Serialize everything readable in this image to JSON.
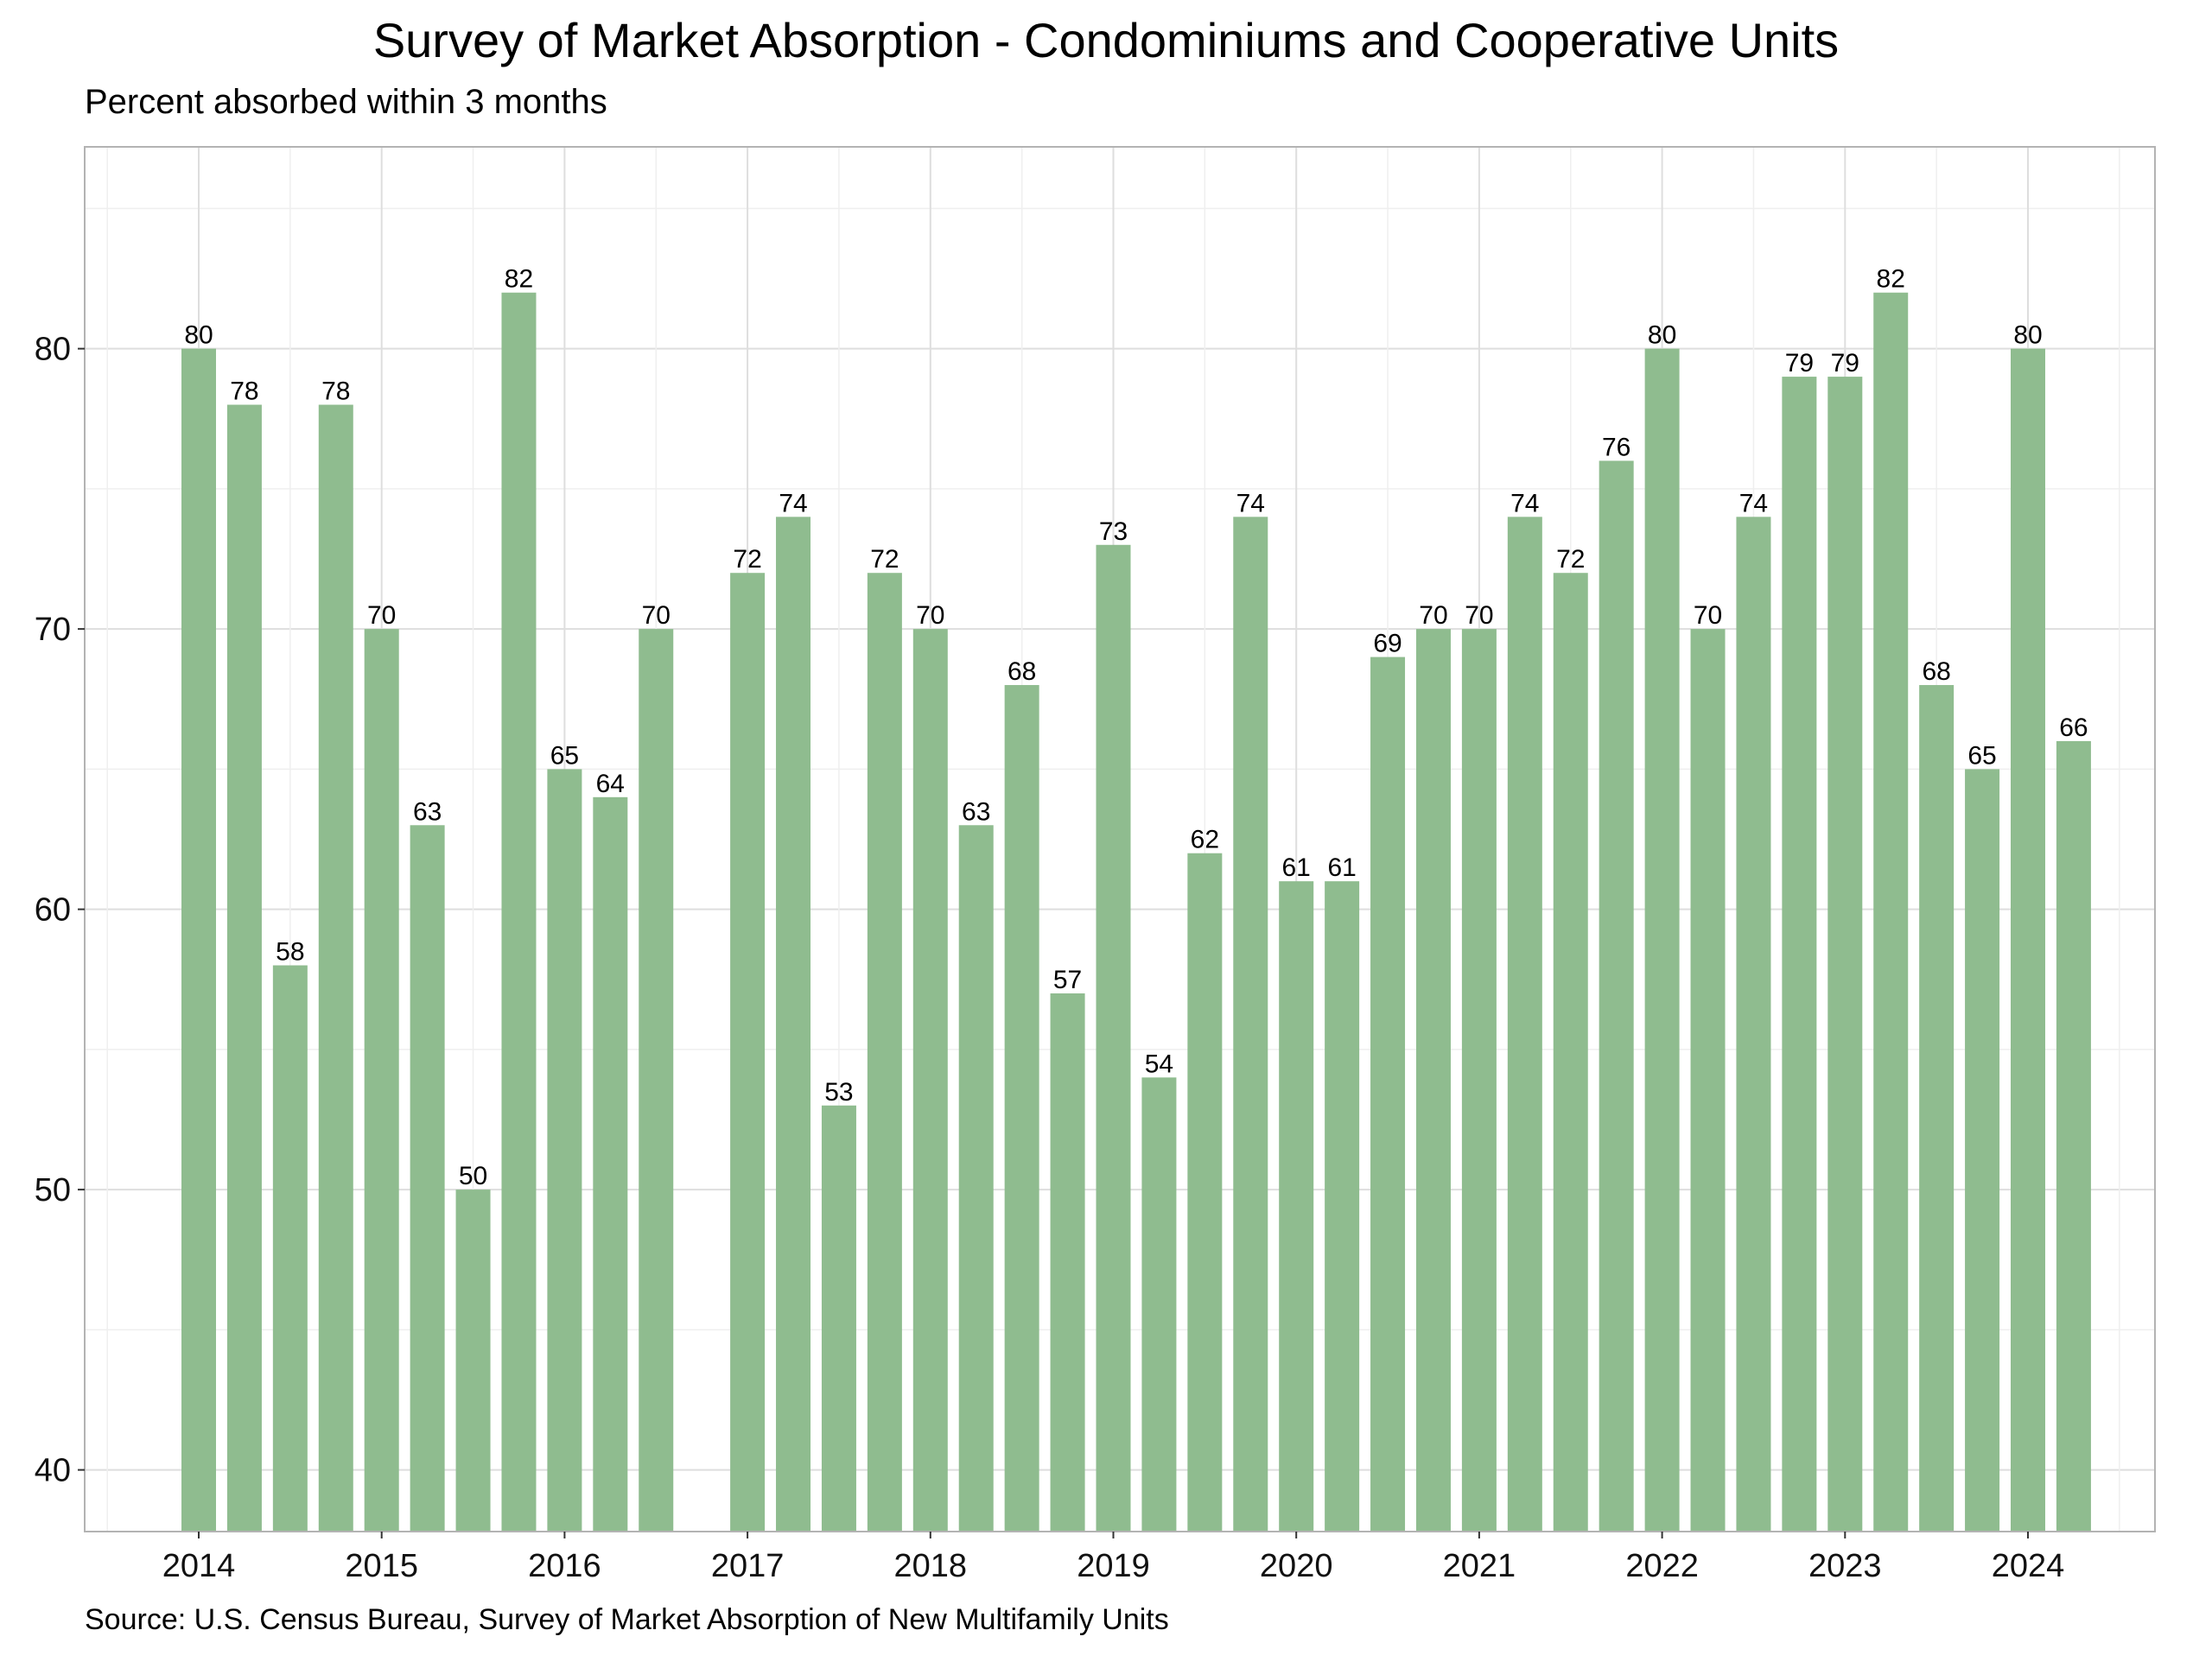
{
  "chart_data": {
    "type": "bar",
    "title": "Survey of Market Absorption - Condominiums and Cooperative Units",
    "subtitle": "Percent absorbed within 3 months",
    "source": "Source: U.S. Census Bureau, Survey of Market Absorption of New Multifamily Units",
    "xlabel": "",
    "ylabel": "",
    "bar_color": "#8fbc8f",
    "grid": true,
    "legend": "none",
    "x_ticks": [
      "2014",
      "2015",
      "2016",
      "2017",
      "2018",
      "2019",
      "2020",
      "2021",
      "2022",
      "2023",
      "2024"
    ],
    "y_ticks": [
      40,
      50,
      60,
      70,
      80
    ],
    "ylim": [
      37.8,
      87.2
    ],
    "x": [
      "2014 Q1",
      "2014 Q2",
      "2014 Q3",
      "2014 Q4",
      "2015 Q1",
      "2015 Q2",
      "2015 Q3",
      "2015 Q4",
      "2016 Q1",
      "2016 Q2",
      "2016 Q3",
      "2016 Q4",
      "2017 Q1",
      "2017 Q2",
      "2017 Q3",
      "2017 Q4",
      "2018 Q1",
      "2018 Q2",
      "2018 Q3",
      "2018 Q4",
      "2019 Q1",
      "2019 Q2",
      "2019 Q3",
      "2019 Q4",
      "2020 Q1",
      "2020 Q2",
      "2020 Q3",
      "2020 Q4",
      "2021 Q1",
      "2021 Q2",
      "2021 Q3",
      "2021 Q4",
      "2022 Q1",
      "2022 Q2",
      "2022 Q3",
      "2022 Q4",
      "2023 Q1",
      "2023 Q2",
      "2023 Q3",
      "2023 Q4",
      "2024 Q1",
      "2024 Q2"
    ],
    "values": [
      80,
      78,
      58,
      78,
      70,
      63,
      50,
      82,
      65,
      64,
      70,
      null,
      72,
      74,
      53,
      72,
      70,
      63,
      68,
      57,
      73,
      54,
      62,
      74,
      61,
      61,
      69,
      70,
      70,
      74,
      72,
      76,
      80,
      70,
      74,
      79,
      79,
      82,
      68,
      65,
      80,
      66
    ]
  }
}
